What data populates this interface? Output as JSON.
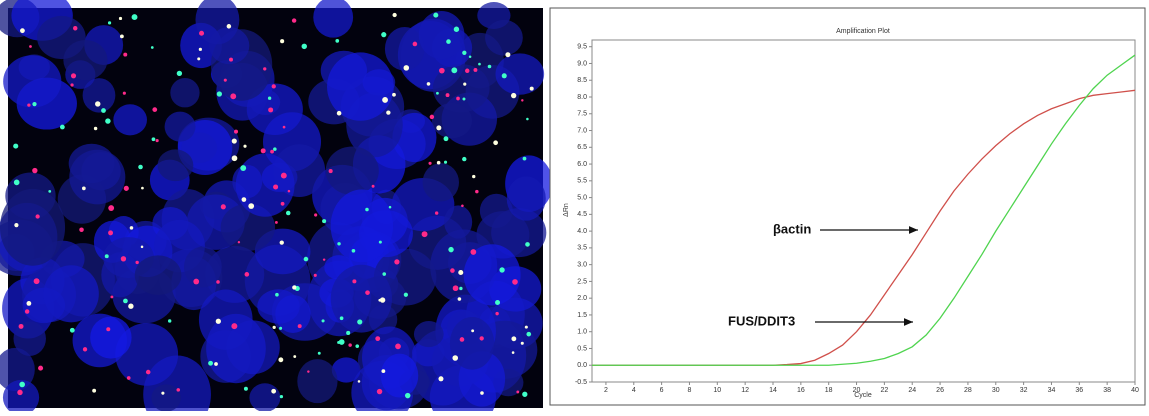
{
  "chart_data": {
    "type": "line",
    "title": "Amplification Plot",
    "x_label": "Cycle",
    "y_label": "ΔRn",
    "x": [
      1,
      2,
      3,
      4,
      5,
      6,
      7,
      8,
      9,
      10,
      11,
      12,
      13,
      14,
      15,
      16,
      17,
      18,
      19,
      20,
      21,
      22,
      23,
      24,
      25,
      26,
      27,
      28,
      29,
      30,
      31,
      32,
      33,
      34,
      35,
      36,
      37,
      38,
      39,
      40
    ],
    "series": [
      {
        "name": "βactin",
        "color": "#d0504b",
        "values": [
          0,
          0,
          0,
          0,
          0,
          0,
          0,
          0,
          0,
          0,
          0,
          0,
          0,
          0,
          0.02,
          0.05,
          0.15,
          0.35,
          0.6,
          1.0,
          1.5,
          2.1,
          2.7,
          3.3,
          3.95,
          4.6,
          5.2,
          5.7,
          6.15,
          6.55,
          6.9,
          7.2,
          7.45,
          7.65,
          7.8,
          7.95,
          8.05,
          8.1,
          8.15,
          8.2
        ]
      },
      {
        "name": "FUS/DDIT3",
        "color": "#4fd44f",
        "values": [
          0,
          0,
          0,
          0,
          0,
          0,
          0,
          0,
          0,
          0,
          0,
          0,
          0,
          0,
          0,
          0,
          0,
          0,
          0.03,
          0.06,
          0.12,
          0.2,
          0.35,
          0.55,
          0.9,
          1.4,
          2.0,
          2.65,
          3.3,
          4.0,
          4.65,
          5.3,
          5.95,
          6.6,
          7.2,
          7.75,
          8.25,
          8.65,
          8.95,
          9.25
        ]
      }
    ],
    "xlim": [
      1,
      40
    ],
    "xticks": [
      2,
      4,
      6,
      8,
      10,
      12,
      14,
      16,
      18,
      20,
      22,
      24,
      26,
      28,
      30,
      32,
      34,
      36,
      38,
      40
    ],
    "ylim": [
      -0.5,
      9.7
    ],
    "yticks": [
      -0.5,
      {
        "value": 0,
        "label": "0.0"
      },
      0.5,
      {
        "value": 1,
        "label": "1.0"
      },
      1.5,
      {
        "value": 2,
        "label": "2.0"
      },
      2.5,
      {
        "value": 3,
        "label": "3.0"
      },
      3.5,
      {
        "value": 4,
        "label": "4.0"
      },
      4.5,
      {
        "value": 5,
        "label": "5.0"
      },
      5.5,
      {
        "value": 6,
        "label": "6.0"
      },
      6.5,
      {
        "value": 7,
        "label": "7.0"
      },
      7.5,
      {
        "value": 8,
        "label": "8.0"
      },
      8.5,
      {
        "value": 9,
        "label": "9.0"
      },
      9.5
    ],
    "grid": false
  }
}
